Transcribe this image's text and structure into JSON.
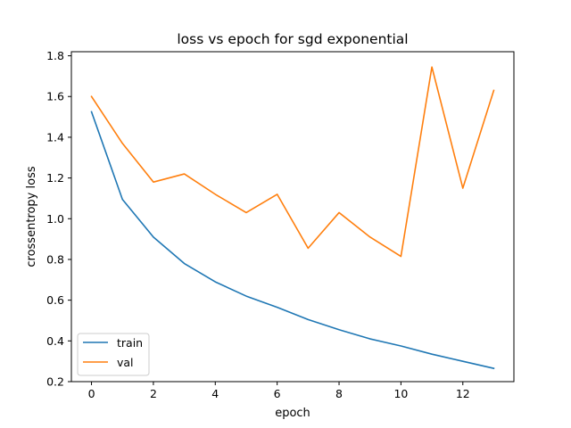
{
  "chart_data": {
    "type": "line",
    "title": "loss vs epoch for sgd exponential",
    "xlabel": "epoch",
    "ylabel": "crossentropy loss",
    "xlim": [
      -0.65,
      13.65
    ],
    "ylim": [
      0.2,
      1.82
    ],
    "xticks": [
      0,
      2,
      4,
      6,
      8,
      10,
      12
    ],
    "yticks": [
      0.2,
      0.4,
      0.6,
      0.8,
      1.0,
      1.2,
      1.4,
      1.6,
      1.8
    ],
    "ytick_labels": [
      "0.2",
      "0.4",
      "0.6",
      "0.8",
      "1.0",
      "1.2",
      "1.4",
      "1.6",
      "1.8"
    ],
    "x": [
      0,
      1,
      2,
      3,
      4,
      5,
      6,
      7,
      8,
      9,
      10,
      11,
      12,
      13
    ],
    "series": [
      {
        "name": "train",
        "color": "#1f77b4",
        "values": [
          1.525,
          1.095,
          0.91,
          0.78,
          0.69,
          0.62,
          0.565,
          0.505,
          0.455,
          0.41,
          0.375,
          0.335,
          0.3,
          0.265
        ]
      },
      {
        "name": "val",
        "color": "#ff7f0e",
        "values": [
          1.6,
          1.37,
          1.18,
          1.22,
          1.12,
          1.03,
          1.12,
          0.855,
          1.03,
          0.91,
          0.815,
          1.745,
          1.15,
          1.63
        ]
      }
    ],
    "grid": false,
    "legend_location": "lower-left"
  }
}
